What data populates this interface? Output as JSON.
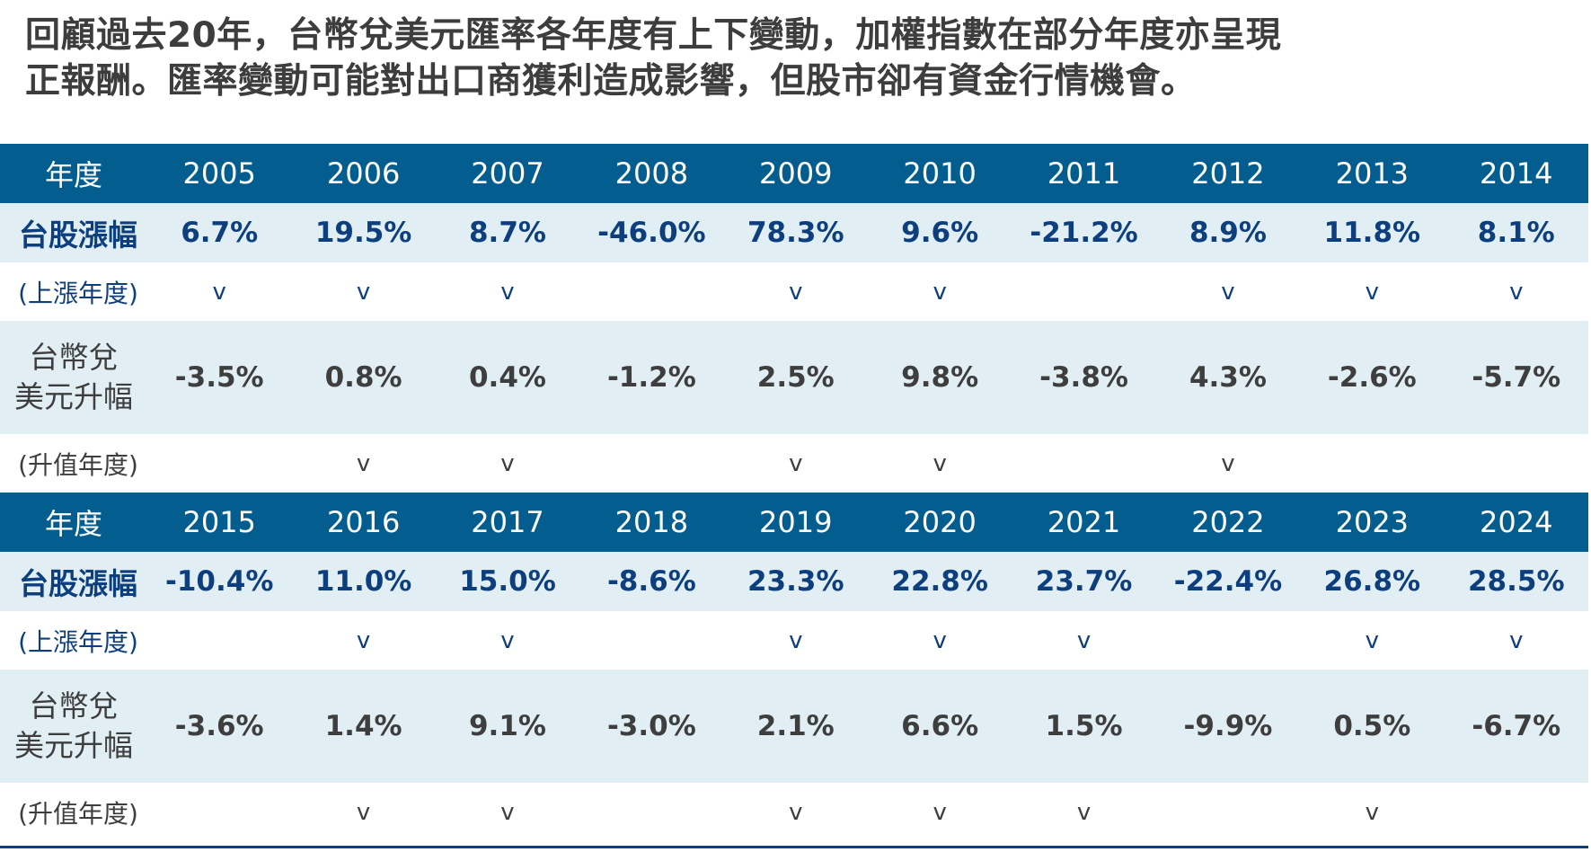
{
  "headline": {
    "line1": "回顧過去20年，台幣兌美元匯率各年度有上下變動，加權指數在部分年度亦呈現",
    "line2": "正報酬。匯率變動可能對出口商獲利造成影響，但股市卻有資金行情機會。"
  },
  "labels": {
    "year": "年度",
    "stock_return": "台股漲幅",
    "stock_up": "(上漲年度)",
    "fx_line1": "台幣兌",
    "fx_line2": "美元升幅",
    "fx_up": "(升值年度)",
    "check": "v"
  },
  "colors": {
    "header_bg": "#045d8f",
    "header_text": "#ffffff",
    "band_bg": "#e1eff5",
    "stock_text": "#0d3f7e",
    "fx_text": "#3e3e3e"
  },
  "chart_data": {
    "type": "table",
    "title": "回顧過去20年，台幣兌美元匯率各年度有上下變動，加權指數在部分年度亦呈現正報酬。匯率變動可能對出口商獲利造成影響，但股市卻有資金行情機會。",
    "blocks": [
      {
        "years": [
          "2005",
          "2006",
          "2007",
          "2008",
          "2009",
          "2010",
          "2011",
          "2012",
          "2013",
          "2014"
        ],
        "stock_return": [
          "6.7%",
          "19.5%",
          "8.7%",
          "-46.0%",
          "78.3%",
          "9.6%",
          "-21.2%",
          "8.9%",
          "11.8%",
          "8.1%"
        ],
        "stock_up": [
          true,
          true,
          true,
          false,
          true,
          true,
          false,
          true,
          true,
          true
        ],
        "fx_change": [
          "-3.5%",
          "0.8%",
          "0.4%",
          "-1.2%",
          "2.5%",
          "9.8%",
          "-3.8%",
          "4.3%",
          "-2.6%",
          "-5.7%"
        ],
        "fx_up": [
          false,
          true,
          true,
          false,
          true,
          true,
          false,
          true,
          false,
          false
        ]
      },
      {
        "years": [
          "2015",
          "2016",
          "2017",
          "2018",
          "2019",
          "2020",
          "2021",
          "2022",
          "2023",
          "2024"
        ],
        "stock_return": [
          "-10.4%",
          "11.0%",
          "15.0%",
          "-8.6%",
          "23.3%",
          "22.8%",
          "23.7%",
          "-22.4%",
          "26.8%",
          "28.5%"
        ],
        "stock_up": [
          false,
          true,
          true,
          false,
          true,
          true,
          true,
          false,
          true,
          true
        ],
        "fx_change": [
          "-3.6%",
          "1.4%",
          "9.1%",
          "-3.0%",
          "2.1%",
          "6.6%",
          "1.5%",
          "-9.9%",
          "0.5%",
          "-6.7%"
        ],
        "fx_up": [
          false,
          true,
          true,
          false,
          true,
          true,
          true,
          false,
          true,
          false
        ]
      }
    ]
  }
}
